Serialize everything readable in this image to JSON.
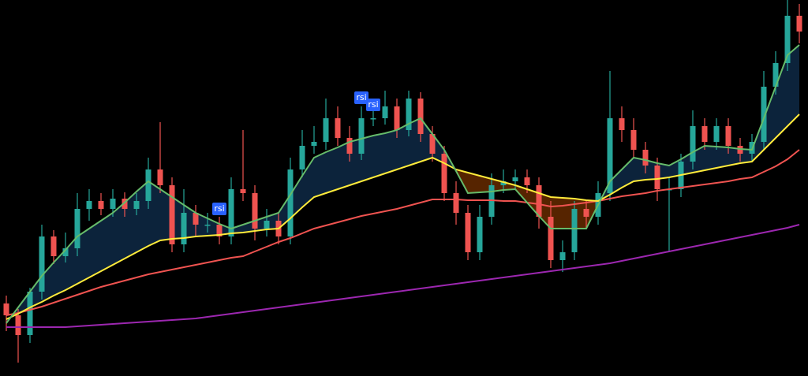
{
  "chart_data": {
    "type": "candlestick",
    "ylim": [
      0,
      477
    ],
    "up_color": "#26a69a",
    "down_color": "#ef5350",
    "open": [
      92,
      77,
      52,
      107,
      177,
      152,
      162,
      212,
      222,
      212,
      225,
      212,
      222,
      262,
      242,
      167,
      207,
      192,
      192,
      177,
      237,
      232,
      187,
      197,
      177,
      262,
      292,
      297,
      327,
      302,
      282,
      327,
      327,
      342,
      312,
      352,
      307,
      282,
      232,
      207,
      157,
      202,
      242,
      247,
      252,
      242,
      202,
      147,
      157,
      212,
      202,
      232,
      327,
      312,
      287,
      267,
      237,
      237,
      272,
      317,
      297,
      317,
      292,
      282,
      297,
      367,
      397,
      457
    ],
    "high": [
      102,
      85,
      112,
      192,
      185,
      182,
      232,
      237,
      232,
      237,
      233,
      232,
      277,
      322,
      252,
      237,
      217,
      207,
      202,
      252,
      312,
      242,
      212,
      207,
      277,
      312,
      317,
      352,
      342,
      317,
      342,
      337,
      362,
      352,
      362,
      360,
      317,
      292,
      247,
      217,
      217,
      257,
      262,
      262,
      262,
      252,
      222,
      172,
      222,
      222,
      247,
      387,
      342,
      327,
      297,
      277,
      252,
      282,
      337,
      327,
      327,
      327,
      302,
      307,
      387,
      412,
      477,
      472
    ],
    "low": [
      57,
      17,
      42,
      97,
      142,
      144,
      152,
      197,
      204,
      202,
      202,
      204,
      212,
      232,
      157,
      157,
      177,
      182,
      167,
      167,
      222,
      172,
      177,
      167,
      167,
      252,
      282,
      287,
      292,
      272,
      274,
      317,
      319,
      302,
      304,
      297,
      272,
      222,
      192,
      147,
      147,
      192,
      232,
      237,
      232,
      187,
      137,
      132,
      147,
      187,
      192,
      222,
      297,
      277,
      257,
      222,
      157,
      227,
      262,
      287,
      287,
      282,
      272,
      272,
      287,
      357,
      387,
      422
    ],
    "close": [
      77,
      52,
      107,
      177,
      152,
      162,
      212,
      222,
      212,
      225,
      212,
      222,
      262,
      242,
      167,
      207,
      192,
      192,
      177,
      237,
      232,
      187,
      197,
      177,
      262,
      292,
      297,
      327,
      302,
      282,
      327,
      327,
      342,
      312,
      352,
      307,
      282,
      232,
      207,
      157,
      202,
      242,
      247,
      252,
      242,
      202,
      147,
      157,
      212,
      202,
      232,
      327,
      312,
      287,
      267,
      237,
      237,
      272,
      317,
      297,
      317,
      292,
      282,
      297,
      367,
      397,
      457,
      437
    ],
    "lines": [
      {
        "color": "#9c27b0",
        "values": [
          62,
          62,
          62,
          62,
          62,
          62,
          63,
          64,
          65,
          66,
          67,
          68,
          69,
          70,
          71,
          72,
          73,
          75,
          77,
          79,
          81,
          83,
          85,
          87,
          89,
          91,
          93,
          95,
          97,
          99,
          101,
          103,
          105,
          107,
          109,
          111,
          113,
          115,
          117,
          119,
          121,
          123,
          125,
          127,
          129,
          131,
          133,
          135,
          137,
          139,
          141,
          143,
          146,
          149,
          152,
          155,
          158,
          161,
          164,
          167,
          170,
          173,
          176,
          179,
          182,
          185,
          188,
          192
        ]
      },
      {
        "color": "#ef5350",
        "values": [
          77,
          80,
          84,
          88,
          93,
          98,
          103,
          108,
          113,
          117,
          121,
          125,
          129,
          132,
          135,
          138,
          141,
          144,
          147,
          150,
          152,
          158,
          164,
          170,
          175,
          181,
          187,
          191,
          195,
          199,
          203,
          206,
          209,
          212,
          216,
          220,
          224,
          224,
          224,
          223,
          223,
          223,
          222,
          222,
          220,
          218,
          215,
          216,
          218,
          220,
          222,
          225,
          228,
          230,
          232,
          235,
          237,
          239,
          241,
          243,
          245,
          247,
          250,
          252,
          259,
          266,
          275,
          287
        ]
      },
      {
        "color": "#ffeb3b",
        "values": [
          72,
          79,
          87,
          94,
          102,
          109,
          117,
          125,
          133,
          141,
          149,
          157,
          165,
          172,
          174,
          175,
          177,
          178,
          179,
          181,
          182,
          184,
          186,
          187,
          200,
          214,
          227,
          232,
          237,
          242,
          247,
          252,
          257,
          262,
          267,
          272,
          277,
          270,
          262,
          258,
          254,
          250,
          246,
          242,
          237,
          232,
          227,
          226,
          225,
          223,
          222,
          230,
          239,
          247,
          249,
          250,
          252,
          255,
          258,
          261,
          264,
          267,
          270,
          272,
          287,
          302,
          317,
          332
        ]
      },
      {
        "color": "#66bb6a",
        "values": [
          67,
          87,
          107,
          127,
          144,
          160,
          177,
          187,
          197,
          207,
          220,
          234,
          247,
          237,
          227,
          217,
          207,
          200,
          193,
          187,
          192,
          197,
          202,
          207,
          230,
          254,
          277,
          284,
          290,
          297,
          301,
          305,
          308,
          312,
          320,
          327,
          307,
          287,
          260,
          232,
          233,
          234,
          236,
          237,
          220,
          203,
          187,
          187,
          187,
          187,
          217,
          247,
          262,
          277,
          274,
          270,
          267,
          275,
          284,
          292,
          291,
          290,
          288,
          287,
          327,
          367,
          407,
          420
        ]
      }
    ],
    "annotation_color": "#2962ff",
    "annotations": [
      {
        "text": "rsi",
        "index": 30,
        "value": 353
      },
      {
        "text": "rsi",
        "index": 31,
        "value": 344
      },
      {
        "text": "rsi",
        "index": 18,
        "value": 212
      }
    ]
  }
}
